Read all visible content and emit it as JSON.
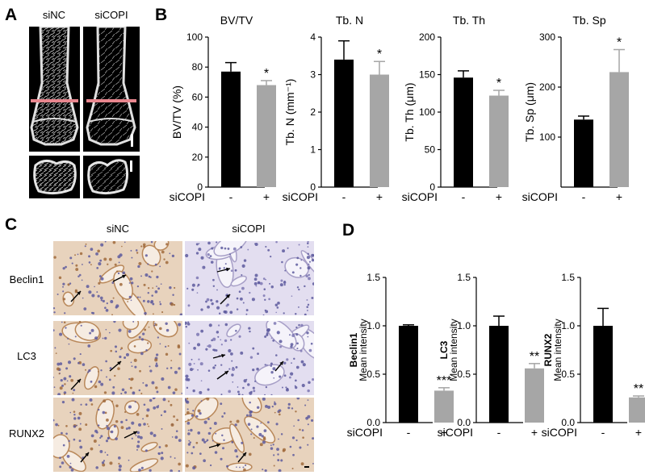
{
  "panels": {
    "a": "A",
    "b": "B",
    "c": "C",
    "d": "D"
  },
  "panel_a": {
    "col_labels": [
      "siNC",
      "siCOPI"
    ]
  },
  "panel_c": {
    "col_labels": [
      "siNC",
      "siCOPI"
    ],
    "row_labels": [
      "Beclin1",
      "LC3",
      "RUNX2"
    ]
  },
  "colors": {
    "black_bar": "#000000",
    "gray_bar": "#a6a6a6",
    "ct_line": "#e8868e",
    "stain_brown": "#c9a074",
    "stain_blue": "#5d5a9e"
  },
  "chart_data": [
    {
      "type": "bar",
      "panel": "B",
      "title": "BV/TV",
      "ylabel": "BV/TV (%)",
      "xlabel": "siCOPI",
      "categories": [
        "-",
        "+"
      ],
      "values": [
        77,
        68
      ],
      "errors": [
        6,
        3
      ],
      "significance": [
        "",
        "*"
      ],
      "ylim": [
        0,
        100
      ],
      "yticks": [
        0,
        20,
        40,
        60,
        80,
        100
      ]
    },
    {
      "type": "bar",
      "panel": "B",
      "title": "Tb. N",
      "ylabel": "Tb. N (mm⁻¹)",
      "xlabel": "siCOPI",
      "categories": [
        "-",
        "+"
      ],
      "values": [
        3.4,
        3.0
      ],
      "errors": [
        0.5,
        0.35
      ],
      "significance": [
        "",
        "*"
      ],
      "ylim": [
        0,
        4
      ],
      "yticks": [
        0,
        1,
        2,
        3,
        4
      ]
    },
    {
      "type": "bar",
      "panel": "B",
      "title": "Tb. Th",
      "ylabel": "Tb. Th (μm)",
      "xlabel": "siCOPI",
      "categories": [
        "-",
        "+"
      ],
      "values": [
        146,
        122
      ],
      "errors": [
        9,
        7
      ],
      "significance": [
        "",
        "*"
      ],
      "ylim": [
        0,
        200
      ],
      "yticks": [
        0,
        50,
        100,
        150,
        200
      ]
    },
    {
      "type": "bar",
      "panel": "B",
      "title": "Tb. Sp",
      "ylabel": "Tb. Sp (μm)",
      "xlabel": "siCOPI",
      "categories": [
        "-",
        "+"
      ],
      "values": [
        135,
        230
      ],
      "errors": [
        7,
        45
      ],
      "significance": [
        "",
        "*"
      ],
      "ylim": [
        0,
        300
      ],
      "yticks": [
        100,
        200,
        300
      ]
    },
    {
      "type": "bar",
      "panel": "D",
      "ylabel_bold": "Beclin1",
      "ylabel": "Mean intensity",
      "xlabel": "siCOPI",
      "categories": [
        "-",
        "+"
      ],
      "values": [
        1.0,
        0.33
      ],
      "errors": [
        0.01,
        0.03
      ],
      "significance": [
        "",
        "***"
      ],
      "ylim": [
        0,
        1.5
      ],
      "yticks": [
        0.0,
        0.5,
        1.0,
        1.5
      ]
    },
    {
      "type": "bar",
      "panel": "D",
      "ylabel_bold": "LC3",
      "ylabel": "Mean intensity",
      "xlabel": "siCOPI",
      "categories": [
        "-",
        "+"
      ],
      "values": [
        1.0,
        0.56
      ],
      "errors": [
        0.1,
        0.05
      ],
      "significance": [
        "",
        "**"
      ],
      "ylim": [
        0,
        1.5
      ],
      "yticks": [
        0.0,
        0.5,
        1.0,
        1.5
      ]
    },
    {
      "type": "bar",
      "panel": "D",
      "ylabel_bold": "RUNX2",
      "ylabel": "Mean intensity",
      "xlabel": "siCOPI",
      "categories": [
        "-",
        "+"
      ],
      "values": [
        1.0,
        0.26
      ],
      "errors": [
        0.18,
        0.015
      ],
      "significance": [
        "",
        "**"
      ],
      "ylim": [
        0,
        1.5
      ],
      "yticks": [
        0.0,
        0.5,
        1.0,
        1.5
      ]
    }
  ]
}
